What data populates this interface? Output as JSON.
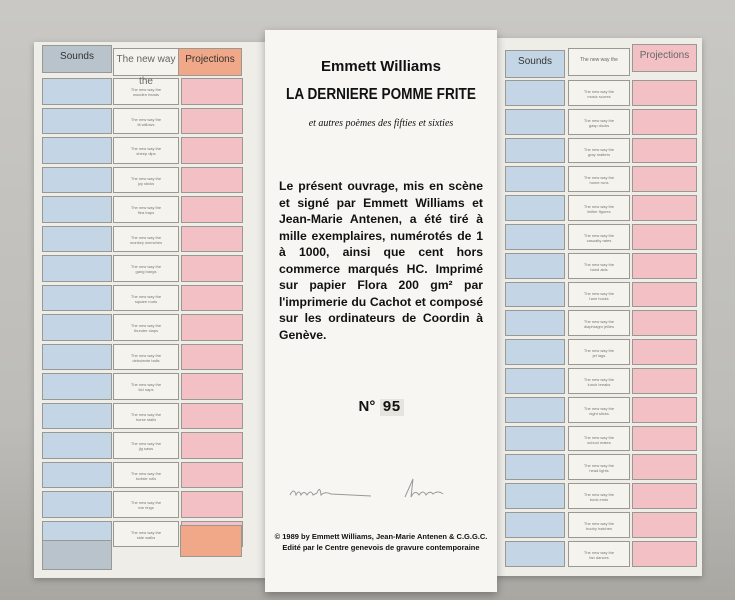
{
  "headers": {
    "sounds": "Sounds",
    "new_way": "The new way the",
    "projections": "Projections"
  },
  "item_prefix": "The new way the",
  "left_items": [
    "wooden heads",
    "tit willows",
    "sheep dips",
    "joy sticks",
    "flea traps",
    "monkey wrenches",
    "gang bangs",
    "square roots",
    "thunder claps",
    "debutante balls",
    "kid naps",
    "horse stalls",
    "jig saws",
    "tootsie rolls",
    "ear rings",
    "side walks"
  ],
  "right_items": [
    "music scores",
    "gasp docks",
    "gray matters",
    "home runs",
    "father figures",
    "casualty rates",
    "band aids",
    "ham hocks",
    "diaphragm jellies",
    "jet lags",
    "lunch breaks",
    "night sticks",
    "school mates",
    "head lights",
    "book ends",
    "booby hatches",
    "fan dances"
  ],
  "center": {
    "author": "Emmett Williams",
    "title": "LA DERNIERE POMME FRITE",
    "subtitle": "et autres poèmes des fifties et sixties",
    "colophon": "Le présent ouvrage, mis en scène et signé par Emmett Williams et Jean-Marie Antenen, a été tiré à mille exemplaires, numérotés de 1 à 1000, ainsi que cent hors commerce marqués HC. Imprimé sur papier Flora 200 gm² par l'imprimerie du Cachot et composé sur les ordinateurs de Coordin à Genève.",
    "number_label": "N°",
    "number": "95",
    "copyright": "© 1989 by Emmett Williams, Jean-Marie Antenen & C.G.G.C.",
    "publisher": "Edité par le Centre genevois de gravure contemporaine",
    "signatures": [
      "Emmett Williams",
      "Antenen"
    ]
  },
  "colors": {
    "blue": "#c4d6e6",
    "pink": "#f3c0c5",
    "orange_tab": "#f0a888",
    "gray_tab": "#b9c3cb"
  }
}
